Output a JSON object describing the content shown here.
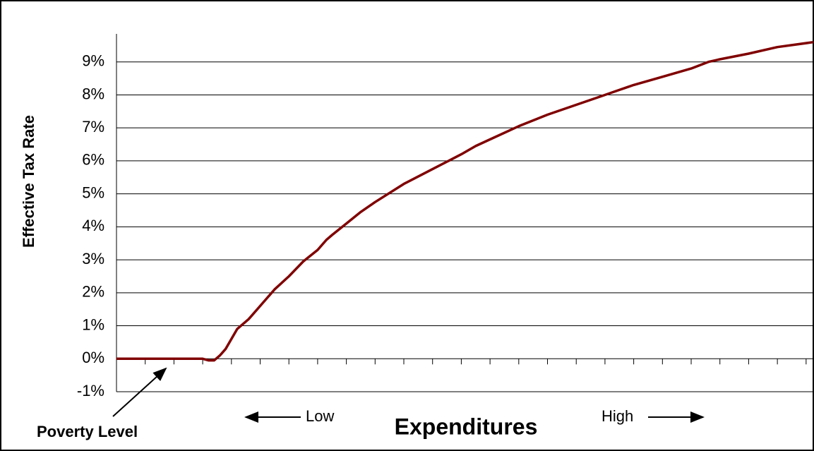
{
  "chart_data": {
    "type": "line",
    "y_label": "Effective Tax Rate",
    "x_label": "Expenditures",
    "annotations": [
      "Poverty Level",
      "Low",
      "High"
    ],
    "x": [
      0,
      3.0,
      3.2,
      3.4,
      3.6,
      3.8,
      4.0,
      4.2,
      4.6,
      5,
      5.5,
      6,
      6.5,
      7,
      7.3,
      7.5,
      8,
      8.5,
      9,
      10,
      11,
      12,
      12.5,
      13,
      14,
      15,
      16,
      17,
      17.5,
      18,
      19,
      20,
      20.6,
      21,
      22,
      23,
      24.25
    ],
    "series": [
      {
        "color": "#800000",
        "values": [
          0,
          0,
          -0.05,
          -0.05,
          0.1,
          0.3,
          0.6,
          0.9,
          1.2,
          1.6,
          2.1,
          2.5,
          2.95,
          3.3,
          3.6,
          3.75,
          4.1,
          4.45,
          4.75,
          5.3,
          5.75,
          6.2,
          6.45,
          6.65,
          7.05,
          7.4,
          7.7,
          8.0,
          8.15,
          8.3,
          8.55,
          8.8,
          9.0,
          9.08,
          9.25,
          9.45,
          9.6
        ]
      }
    ],
    "xlim": [
      0,
      24.25
    ],
    "xticks": [
      0,
      1,
      2,
      3,
      4,
      5,
      6,
      7,
      8,
      9,
      10,
      11,
      12,
      13,
      14,
      15,
      16,
      17,
      18,
      19,
      20,
      21,
      22,
      23,
      24
    ],
    "ylim": [
      -1,
      10
    ],
    "yticks": [
      {
        "value": -1,
        "label": "-1%"
      },
      {
        "value": 0,
        "label": "0%"
      },
      {
        "value": 1,
        "label": "1%"
      },
      {
        "value": 2,
        "label": "2%"
      },
      {
        "value": 3,
        "label": "3%"
      },
      {
        "value": 4,
        "label": "4%"
      },
      {
        "value": 5,
        "label": "5%"
      },
      {
        "value": 6,
        "label": "6%"
      },
      {
        "value": 7,
        "label": "7%"
      },
      {
        "value": 8,
        "label": "8%"
      },
      {
        "value": 9,
        "label": "9%"
      }
    ],
    "grid": true
  }
}
